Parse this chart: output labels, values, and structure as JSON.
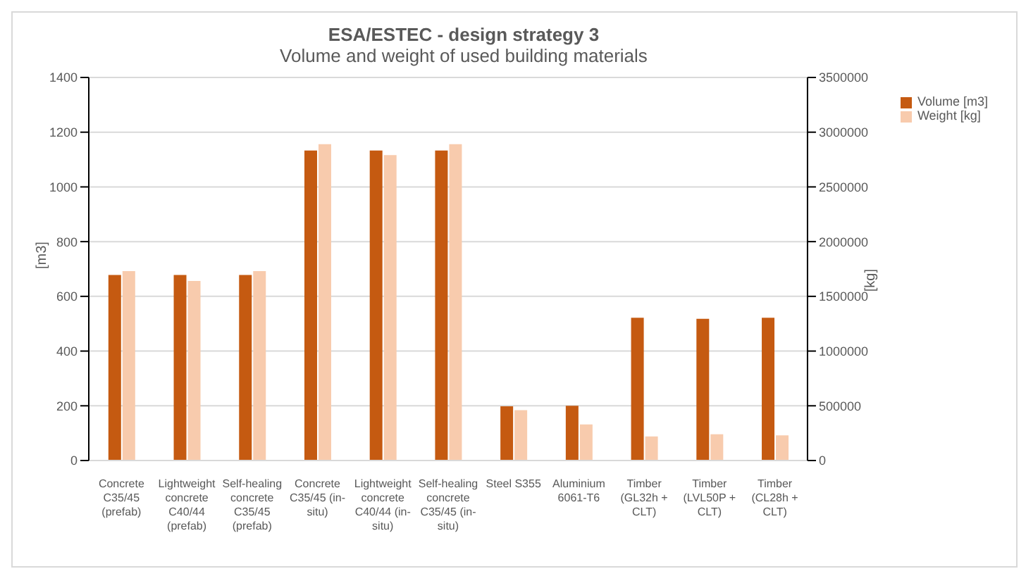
{
  "chart_data": {
    "type": "bar",
    "title": "ESA/ESTEC - design strategy 3",
    "subtitle": "Volume and weight of used building materials",
    "ylabel": "[m3]",
    "y2label": "[kg]",
    "categories": [
      "Concrete C35/45 (prefab)",
      "Lightweight concrete C40/44 (prefab)",
      "Self-healing concrete C35/45 (prefab)",
      "Concrete C35/45 (in-situ)",
      "Lightweight concrete C40/44 (in-situ)",
      "Self-healing concrete C35/45 (in-situ)",
      "Steel S355",
      "Aluminium 6061-T6",
      "Timber (GL32h + CLT)",
      "Timber (LVL50P + CLT)",
      "Timber (CL28h + CLT)"
    ],
    "series": [
      {
        "name": "Volume [m3]",
        "color": "#c55a11",
        "values": [
          678,
          678,
          678,
          1133,
          1133,
          1133,
          198,
          200,
          522,
          518,
          522
        ]
      },
      {
        "name": "Weight [kg]",
        "color": "#f8cbad",
        "axis": "y2",
        "values": [
          1730000,
          1640000,
          1730000,
          2890000,
          2790000,
          2890000,
          460000,
          330000,
          220000,
          240000,
          230000
        ]
      }
    ],
    "ylim": [
      0,
      1400
    ],
    "yticks": [
      0,
      200,
      400,
      600,
      800,
      1000,
      1200,
      1400
    ],
    "y2lim": [
      0,
      3500000
    ],
    "y2ticks": [
      0,
      500000,
      1000000,
      1500000,
      2000000,
      2500000,
      3000000,
      3500000
    ],
    "grid": "y",
    "legend": "top right"
  }
}
